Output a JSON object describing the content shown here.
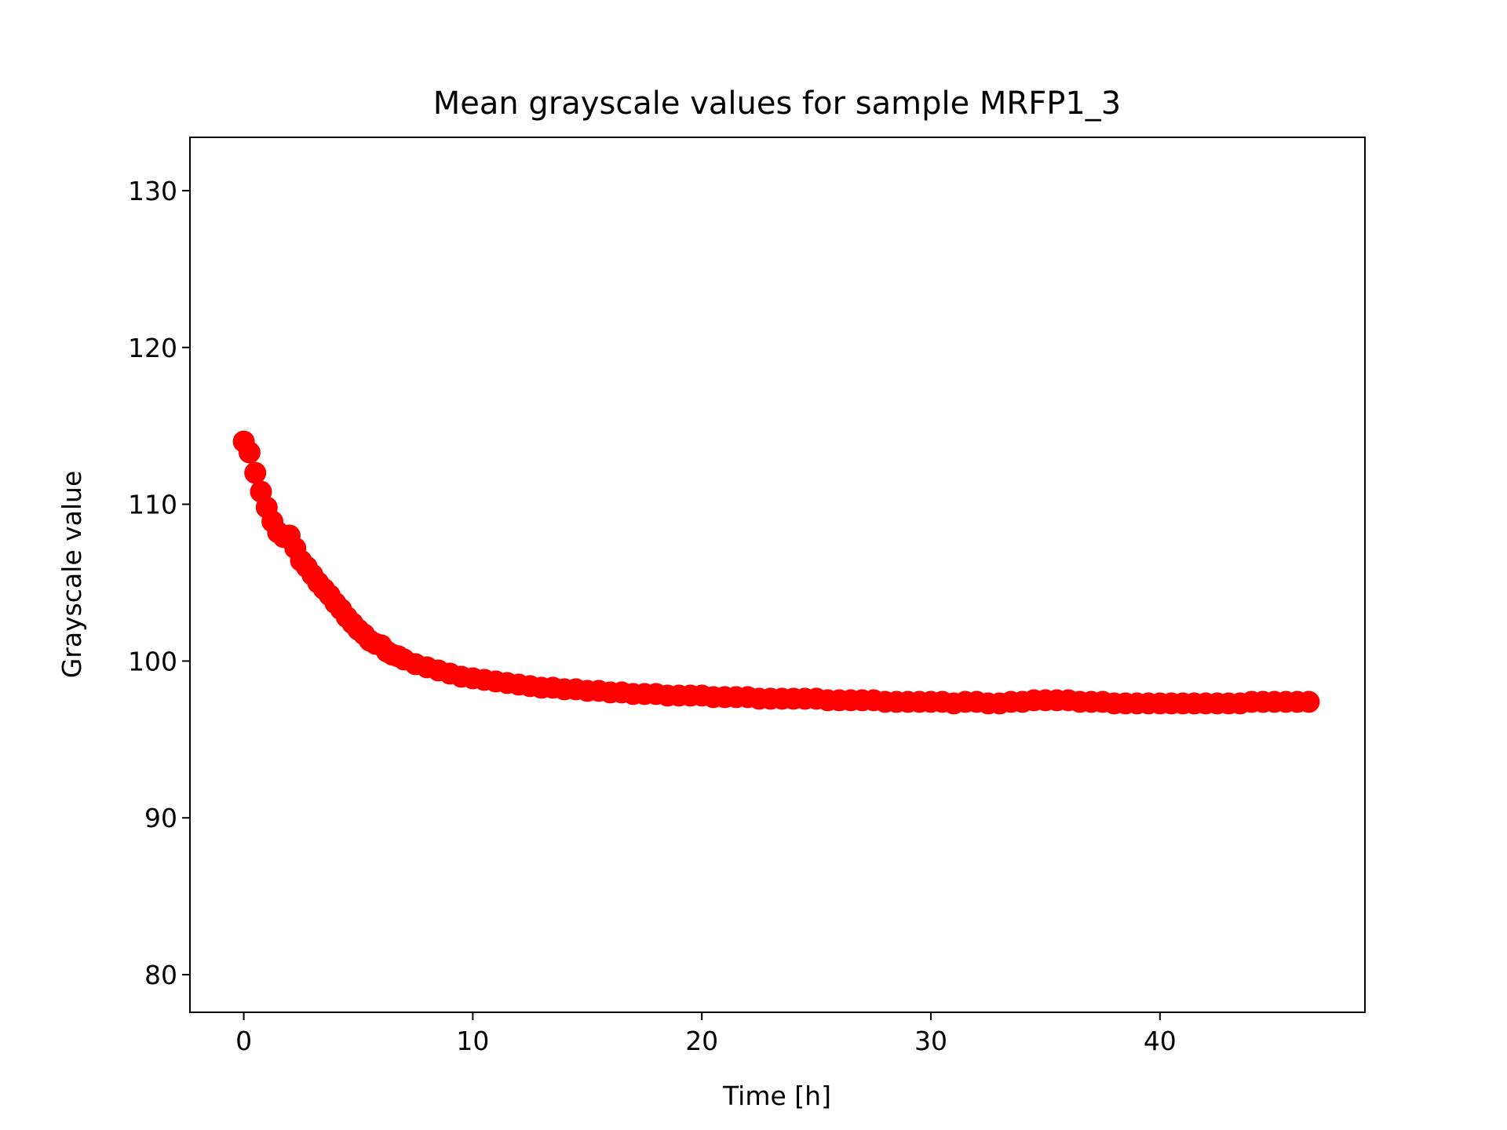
{
  "chart_data": {
    "type": "scatter",
    "title": "Mean grayscale values for sample MRFP1_3",
    "xlabel": "Time [h]",
    "ylabel": "Grayscale value",
    "xlim": [
      -2.35,
      48.95
    ],
    "ylim": [
      77.6,
      133.4
    ],
    "xticks": [
      0,
      10,
      20,
      30,
      40
    ],
    "yticks": [
      80,
      90,
      100,
      110,
      120,
      130
    ],
    "xtick_labels": [
      "0",
      "10",
      "20",
      "30",
      "40"
    ],
    "ytick_labels": [
      "80",
      "90",
      "100",
      "110",
      "120",
      "130"
    ],
    "grid": false,
    "marker_color": "#ff0000",
    "series": [
      {
        "x": [
          0.0,
          0.25,
          0.5,
          0.75,
          1.0,
          1.25,
          1.5,
          1.75,
          2.0,
          2.25,
          2.5,
          2.75,
          3.0,
          3.25,
          3.5,
          3.75,
          4.0,
          4.25,
          4.5,
          4.75,
          5.0,
          5.25,
          5.5,
          5.75,
          6.0,
          6.25,
          6.5,
          6.75,
          7.0,
          7.5,
          8.0,
          8.5,
          9.0,
          9.5,
          10.0,
          10.5,
          11.0,
          11.5,
          12.0,
          12.5,
          13.0,
          13.5,
          14.0,
          14.5,
          15.0,
          15.5,
          16.0,
          16.5,
          17.0,
          17.5,
          18.0,
          18.5,
          19.0,
          19.5,
          20.0,
          20.5,
          21.0,
          21.5,
          22.0,
          22.5,
          23.0,
          23.5,
          24.0,
          24.5,
          25.0,
          25.5,
          26.0,
          26.5,
          27.0,
          27.5,
          28.0,
          28.5,
          29.0,
          29.5,
          30.0,
          30.5,
          31.0,
          31.5,
          32.0,
          32.5,
          33.0,
          33.5,
          34.0,
          34.5,
          35.0,
          35.5,
          36.0,
          36.5,
          37.0,
          37.5,
          38.0,
          38.5,
          39.0,
          39.5,
          40.0,
          40.5,
          41.0,
          41.5,
          42.0,
          42.5,
          43.0,
          43.5,
          44.0,
          44.5,
          45.0,
          45.5,
          46.0,
          46.5
        ],
        "y": [
          114.0,
          113.3,
          112.0,
          110.8,
          109.8,
          108.9,
          108.2,
          107.9,
          108.0,
          107.2,
          106.4,
          106.0,
          105.5,
          105.0,
          104.6,
          104.2,
          103.7,
          103.3,
          102.8,
          102.4,
          102.0,
          101.7,
          101.3,
          101.1,
          101.0,
          100.6,
          100.4,
          100.3,
          100.1,
          99.8,
          99.6,
          99.4,
          99.2,
          99.0,
          98.9,
          98.8,
          98.7,
          98.6,
          98.5,
          98.4,
          98.3,
          98.3,
          98.2,
          98.2,
          98.1,
          98.1,
          98.0,
          98.0,
          97.9,
          97.9,
          97.9,
          97.8,
          97.8,
          97.8,
          97.8,
          97.7,
          97.7,
          97.7,
          97.7,
          97.6,
          97.6,
          97.6,
          97.6,
          97.6,
          97.6,
          97.5,
          97.5,
          97.5,
          97.5,
          97.5,
          97.4,
          97.4,
          97.4,
          97.4,
          97.4,
          97.4,
          97.3,
          97.4,
          97.4,
          97.3,
          97.3,
          97.4,
          97.4,
          97.5,
          97.5,
          97.5,
          97.5,
          97.4,
          97.4,
          97.4,
          97.3,
          97.3,
          97.3,
          97.3,
          97.3,
          97.3,
          97.3,
          97.3,
          97.3,
          97.3,
          97.3,
          97.3,
          97.4,
          97.4,
          97.4,
          97.4,
          97.4,
          97.4
        ]
      }
    ]
  }
}
